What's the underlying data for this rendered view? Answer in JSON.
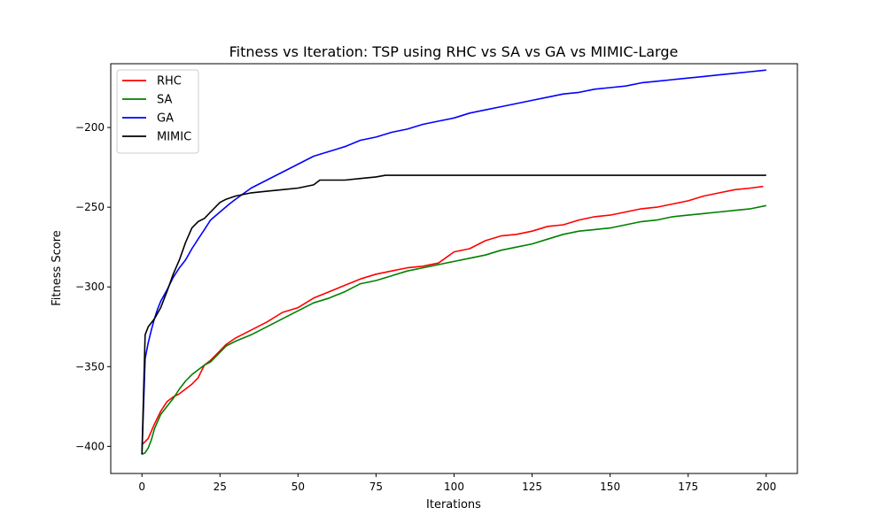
{
  "chart_data": {
    "type": "line",
    "title": "Fitness vs Iteration: TSP using RHC vs SA vs GA vs MIMIC-Large",
    "xlabel": "Iterations",
    "ylabel": "Fitness Score",
    "xlim": [
      -10,
      210
    ],
    "ylim": [
      -417,
      -160
    ],
    "xticks": [
      0,
      25,
      50,
      75,
      100,
      125,
      150,
      175,
      200
    ],
    "yticks": [
      -400,
      -350,
      -300,
      -250,
      -200
    ],
    "grid": false,
    "legend_position": "top-left",
    "series": [
      {
        "name": "RHC",
        "color": "#ff0000",
        "points": [
          [
            0,
            -399
          ],
          [
            2,
            -395
          ],
          [
            4,
            -386
          ],
          [
            6,
            -378
          ],
          [
            8,
            -372
          ],
          [
            10,
            -369
          ],
          [
            12,
            -367
          ],
          [
            14,
            -364
          ],
          [
            16,
            -361
          ],
          [
            18,
            -357
          ],
          [
            20,
            -349
          ],
          [
            22,
            -346
          ],
          [
            25,
            -340
          ],
          [
            27,
            -336
          ],
          [
            30,
            -332
          ],
          [
            35,
            -327
          ],
          [
            40,
            -322
          ],
          [
            45,
            -316
          ],
          [
            50,
            -313
          ],
          [
            55,
            -307
          ],
          [
            60,
            -303
          ],
          [
            65,
            -299
          ],
          [
            70,
            -295
          ],
          [
            75,
            -292
          ],
          [
            80,
            -290
          ],
          [
            85,
            -288
          ],
          [
            90,
            -287
          ],
          [
            95,
            -285
          ],
          [
            100,
            -278
          ],
          [
            105,
            -276
          ],
          [
            110,
            -271
          ],
          [
            115,
            -268
          ],
          [
            120,
            -267
          ],
          [
            125,
            -265
          ],
          [
            130,
            -262
          ],
          [
            135,
            -261
          ],
          [
            140,
            -258
          ],
          [
            145,
            -256
          ],
          [
            150,
            -255
          ],
          [
            155,
            -253
          ],
          [
            160,
            -251
          ],
          [
            165,
            -250
          ],
          [
            170,
            -248
          ],
          [
            175,
            -246
          ],
          [
            180,
            -243
          ],
          [
            185,
            -241
          ],
          [
            190,
            -239
          ],
          [
            195,
            -238
          ],
          [
            199,
            -237
          ]
        ]
      },
      {
        "name": "SA",
        "color": "#008000",
        "points": [
          [
            0,
            -405
          ],
          [
            1,
            -404
          ],
          [
            2,
            -401
          ],
          [
            3,
            -396
          ],
          [
            4,
            -389
          ],
          [
            6,
            -380
          ],
          [
            8,
            -375
          ],
          [
            10,
            -370
          ],
          [
            12,
            -364
          ],
          [
            14,
            -359
          ],
          [
            16,
            -355
          ],
          [
            18,
            -352
          ],
          [
            20,
            -349
          ],
          [
            22,
            -347
          ],
          [
            25,
            -341
          ],
          [
            27,
            -337
          ],
          [
            30,
            -334
          ],
          [
            35,
            -330
          ],
          [
            40,
            -325
          ],
          [
            45,
            -320
          ],
          [
            50,
            -315
          ],
          [
            55,
            -310
          ],
          [
            60,
            -307
          ],
          [
            65,
            -303
          ],
          [
            70,
            -298
          ],
          [
            75,
            -296
          ],
          [
            80,
            -293
          ],
          [
            85,
            -290
          ],
          [
            90,
            -288
          ],
          [
            95,
            -286
          ],
          [
            100,
            -284
          ],
          [
            105,
            -282
          ],
          [
            110,
            -280
          ],
          [
            115,
            -277
          ],
          [
            120,
            -275
          ],
          [
            125,
            -273
          ],
          [
            130,
            -270
          ],
          [
            135,
            -267
          ],
          [
            140,
            -265
          ],
          [
            145,
            -264
          ],
          [
            150,
            -263
          ],
          [
            155,
            -261
          ],
          [
            160,
            -259
          ],
          [
            165,
            -258
          ],
          [
            170,
            -256
          ],
          [
            175,
            -255
          ],
          [
            180,
            -254
          ],
          [
            185,
            -253
          ],
          [
            190,
            -252
          ],
          [
            195,
            -251
          ],
          [
            200,
            -249
          ]
        ]
      },
      {
        "name": "GA",
        "color": "#0000ff",
        "points": [
          [
            0,
            -405
          ],
          [
            1,
            -345
          ],
          [
            2,
            -335
          ],
          [
            3,
            -327
          ],
          [
            4,
            -320
          ],
          [
            5,
            -314
          ],
          [
            6,
            -309
          ],
          [
            8,
            -302
          ],
          [
            10,
            -294
          ],
          [
            12,
            -288
          ],
          [
            14,
            -283
          ],
          [
            16,
            -276
          ],
          [
            18,
            -270
          ],
          [
            20,
            -264
          ],
          [
            22,
            -258
          ],
          [
            25,
            -253
          ],
          [
            28,
            -248
          ],
          [
            30,
            -245
          ],
          [
            35,
            -238
          ],
          [
            40,
            -233
          ],
          [
            45,
            -228
          ],
          [
            50,
            -223
          ],
          [
            55,
            -218
          ],
          [
            60,
            -215
          ],
          [
            65,
            -212
          ],
          [
            70,
            -208
          ],
          [
            75,
            -206
          ],
          [
            80,
            -203
          ],
          [
            85,
            -201
          ],
          [
            90,
            -198
          ],
          [
            95,
            -196
          ],
          [
            100,
            -194
          ],
          [
            105,
            -191
          ],
          [
            110,
            -189
          ],
          [
            115,
            -187
          ],
          [
            120,
            -185
          ],
          [
            125,
            -183
          ],
          [
            130,
            -181
          ],
          [
            135,
            -179
          ],
          [
            140,
            -178
          ],
          [
            145,
            -176
          ],
          [
            150,
            -175
          ],
          [
            155,
            -174
          ],
          [
            160,
            -172
          ],
          [
            165,
            -171
          ],
          [
            170,
            -170
          ],
          [
            175,
            -169
          ],
          [
            180,
            -168
          ],
          [
            185,
            -167
          ],
          [
            190,
            -166
          ],
          [
            195,
            -165
          ],
          [
            200,
            -164
          ]
        ]
      },
      {
        "name": "MIMIC",
        "color": "#000000",
        "points": [
          [
            0,
            -405
          ],
          [
            1,
            -330
          ],
          [
            2,
            -325
          ],
          [
            4,
            -320
          ],
          [
            6,
            -313
          ],
          [
            8,
            -303
          ],
          [
            10,
            -292
          ],
          [
            12,
            -283
          ],
          [
            14,
            -272
          ],
          [
            16,
            -263
          ],
          [
            18,
            -259
          ],
          [
            20,
            -257
          ],
          [
            22,
            -253
          ],
          [
            25,
            -247
          ],
          [
            27,
            -245
          ],
          [
            30,
            -243
          ],
          [
            35,
            -241
          ],
          [
            40,
            -240
          ],
          [
            45,
            -239
          ],
          [
            50,
            -238
          ],
          [
            55,
            -236
          ],
          [
            57,
            -233
          ],
          [
            60,
            -233
          ],
          [
            65,
            -233
          ],
          [
            70,
            -232
          ],
          [
            75,
            -231
          ],
          [
            78,
            -230
          ],
          [
            100,
            -230
          ],
          [
            125,
            -230
          ],
          [
            150,
            -230
          ],
          [
            175,
            -230
          ],
          [
            200,
            -230
          ]
        ]
      }
    ]
  }
}
